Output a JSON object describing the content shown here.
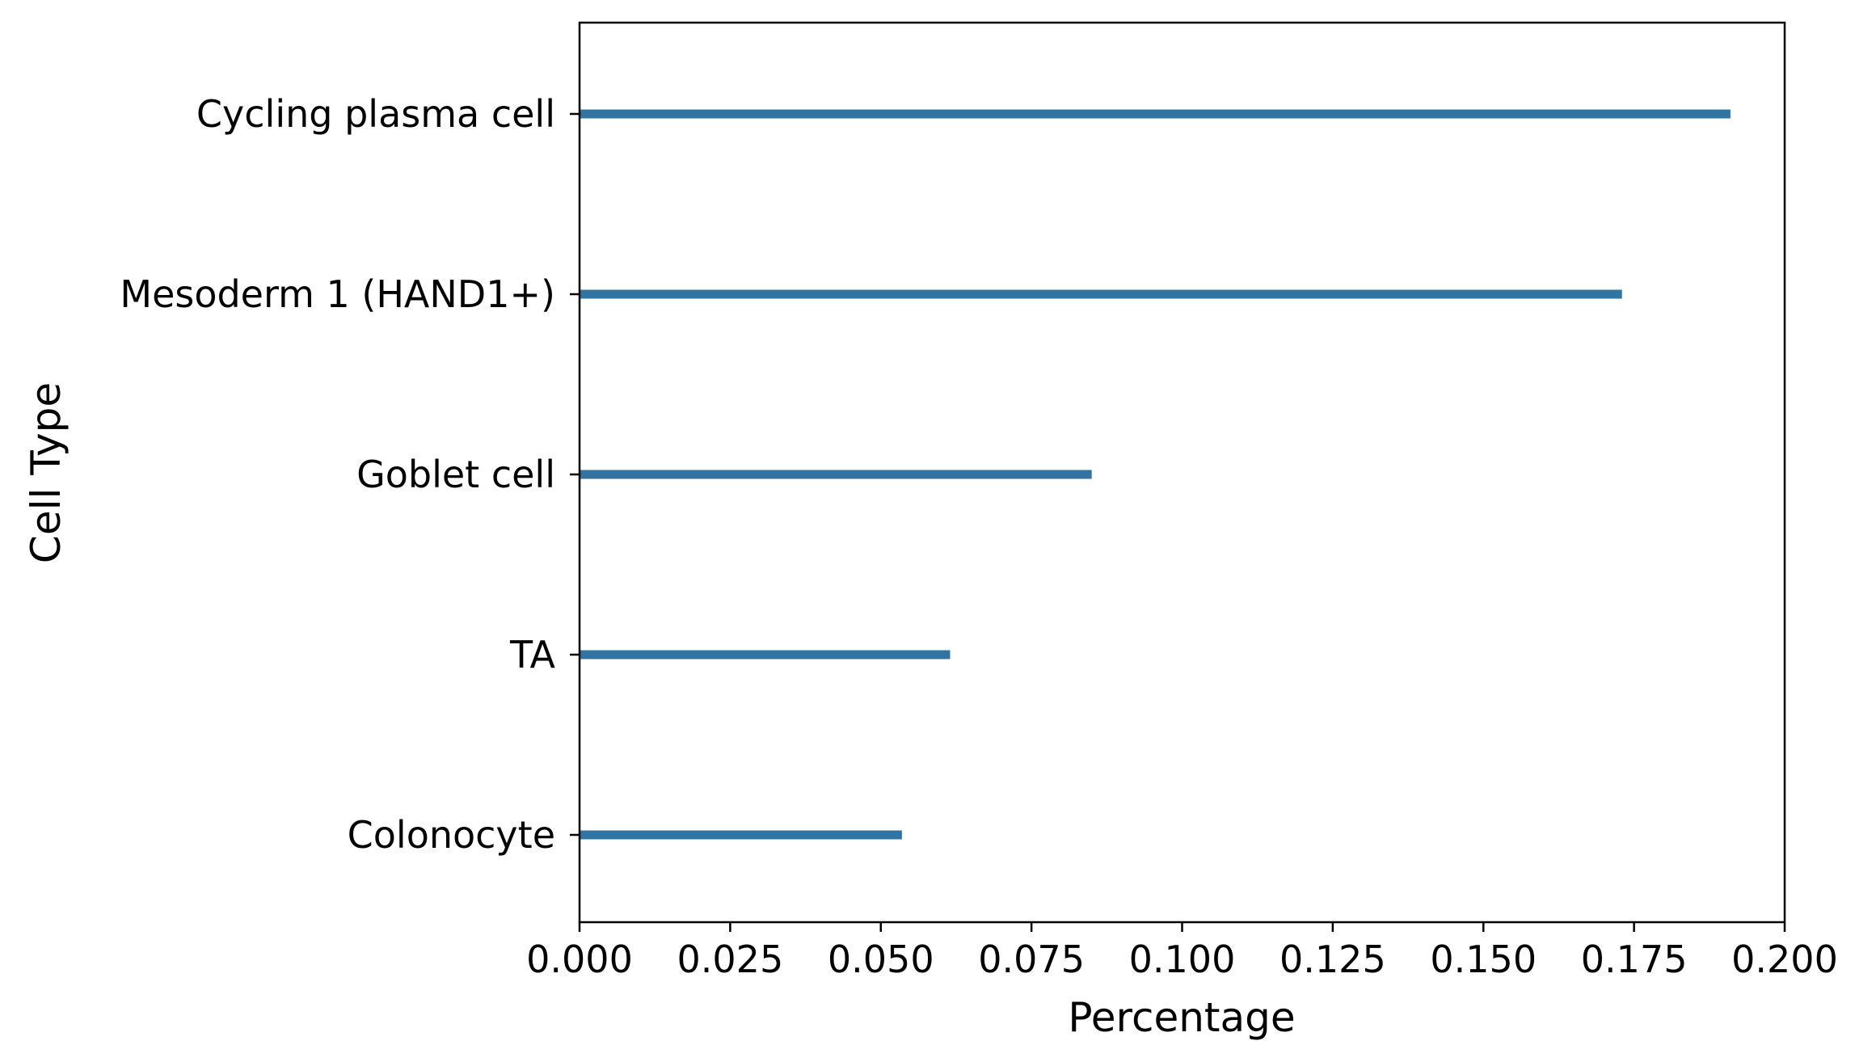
{
  "chart_data": {
    "type": "bar",
    "orientation": "horizontal",
    "categories": [
      "Cycling plasma cell",
      "Mesoderm 1 (HAND1+)",
      "Goblet cell",
      "TA",
      "Colonocyte"
    ],
    "values": [
      0.191,
      0.173,
      0.085,
      0.0615,
      0.0535
    ],
    "xlabel": "Percentage",
    "ylabel": "Cell Type",
    "xlim": [
      0.0,
      0.2
    ],
    "xticks": [
      "0.000",
      "0.025",
      "0.050",
      "0.075",
      "0.100",
      "0.125",
      "0.150",
      "0.175",
      "0.200"
    ],
    "bar_color": "#3274a1",
    "grid": false,
    "legend": "none"
  }
}
